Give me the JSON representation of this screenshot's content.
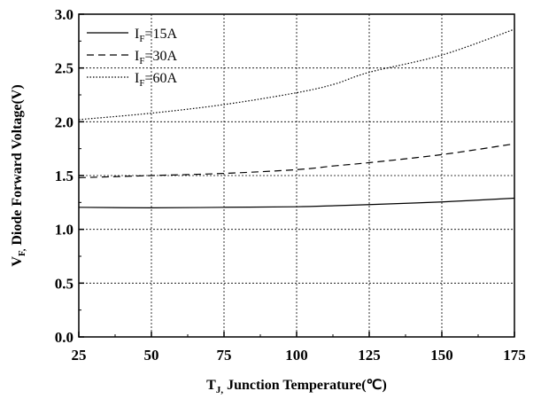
{
  "chart_data": {
    "type": "line",
    "xlabel": {
      "prefix": "T",
      "sub": "J,",
      "rest": " Junction Temperature(℃)"
    },
    "ylabel": {
      "prefix": "V",
      "sub": "F,",
      "rest": " Diode Forward Voltage(V)"
    },
    "xlim": [
      25,
      175
    ],
    "ylim": [
      0.0,
      3.0
    ],
    "xticks": [
      "25",
      "50",
      "75",
      "100",
      "125",
      "150",
      "175"
    ],
    "yticks": [
      "0.0",
      "0.5",
      "1.0",
      "1.5",
      "2.0",
      "2.5",
      "3.0"
    ],
    "grid": true,
    "legend_position": "top-left",
    "series": [
      {
        "name": {
          "prefix": "I",
          "sub": "F",
          "rest": "=15A"
        },
        "style": "solid",
        "x": [
          25,
          50,
          75,
          100,
          113,
          125,
          150,
          175
        ],
        "y": [
          1.205,
          1.2,
          1.205,
          1.21,
          1.22,
          1.23,
          1.255,
          1.29
        ]
      },
      {
        "name": {
          "prefix": "I",
          "sub": "F",
          "rest": "=30A"
        },
        "style": "dashed",
        "x": [
          25,
          50,
          75,
          100,
          113,
          125,
          150,
          175
        ],
        "y": [
          1.48,
          1.5,
          1.52,
          1.555,
          1.59,
          1.62,
          1.695,
          1.795
        ]
      },
      {
        "name": {
          "prefix": "I",
          "sub": "F",
          "rest": "=60A"
        },
        "style": "dotted",
        "x": [
          25,
          50,
          75,
          100,
          113,
          125,
          150,
          175
        ],
        "y": [
          2.02,
          2.08,
          2.16,
          2.27,
          2.35,
          2.46,
          2.62,
          2.86
        ]
      }
    ]
  }
}
